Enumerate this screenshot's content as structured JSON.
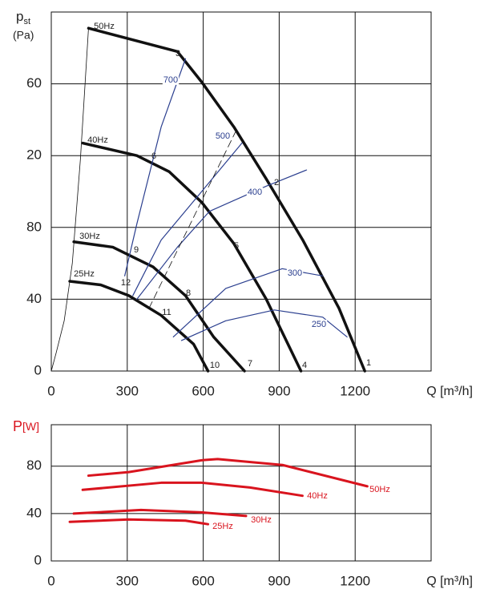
{
  "chart_data": [
    {
      "type": "line",
      "y_label": "p",
      "y_label_sub": "st",
      "y_unit": "(Pa)",
      "x_label": "Q [m³/h]",
      "xlim": [
        0,
        1500
      ],
      "xticks": [
        0,
        300,
        600,
        900,
        1200
      ],
      "ylim": [
        0,
        200
      ],
      "yticks": [
        0,
        40,
        80,
        {
          "value": 120,
          "label": "20"
        },
        {
          "value": 160,
          "label": "60"
        }
      ],
      "grid": true,
      "series": [
        {
          "name": "50Hz",
          "color": "#111111",
          "x": [
            147,
            498,
            594,
            721,
            849,
            993,
            1136,
            1238
          ],
          "values": [
            191,
            178,
            161,
            136,
            107,
            73,
            35,
            0
          ]
        },
        {
          "name": "40Hz",
          "color": "#111111",
          "x": [
            124,
            338,
            466,
            594,
            721,
            849,
            986
          ],
          "values": [
            127,
            120,
            111,
            94,
            71,
            40,
            0
          ]
        },
        {
          "name": "30Hz",
          "color": "#111111",
          "x": [
            89,
            243,
            402,
            530,
            641,
            763
          ],
          "values": [
            72,
            69,
            58,
            42,
            19,
            0
          ]
        },
        {
          "name": "25Hz",
          "color": "#111111",
          "x": [
            73,
            195,
            306,
            434,
            562,
            619
          ],
          "values": [
            50,
            48,
            42,
            31,
            15,
            0
          ]
        },
        {
          "name": "700",
          "color": "#2b3f8f",
          "x": [
            290,
            338,
            434,
            530
          ],
          "values": [
            53,
            82,
            136,
            174
          ]
        },
        {
          "name": "500",
          "color": "#2b3f8f",
          "x": [
            322,
            434,
            594,
            753
          ],
          "values": [
            42,
            73,
            100,
            127
          ]
        },
        {
          "name": "400",
          "color": "#2b3f8f",
          "x": [
            338,
            498,
            625,
            849,
            1008
          ],
          "values": [
            40,
            69,
            89,
            103,
            112
          ]
        },
        {
          "name": "300",
          "color": "#2b3f8f",
          "x": [
            482,
            689,
            912,
            1072
          ],
          "values": [
            19,
            46,
            57,
            53
          ]
        },
        {
          "name": "250",
          "color": "#2b3f8f",
          "x": [
            514,
            689,
            881,
            1072,
            1168
          ],
          "values": [
            17,
            28,
            34,
            30,
            19
          ]
        },
        {
          "color": "#111111",
          "x": [
            0,
            19,
            51,
            83,
            115,
            147
          ],
          "values": [
            0,
            10,
            28,
            60,
            118,
            191
          ]
        },
        {
          "color": "#111111",
          "dashed": true,
          "x": [
            386,
            737
          ],
          "values": [
            35,
            136
          ]
        }
      ],
      "annotations": [
        "1",
        "2",
        "3",
        "4",
        "5",
        "6",
        "7",
        "8",
        "9",
        "10",
        "11",
        "12"
      ]
    },
    {
      "type": "line",
      "y_label": "P",
      "y_unit": "[W]",
      "x_label": "Q [m³/h]",
      "xlim": [
        0,
        1500
      ],
      "xticks": [
        0,
        300,
        600,
        900,
        1200
      ],
      "ylim": [
        0,
        115
      ],
      "yticks": [
        0,
        40,
        80
      ],
      "grid": true,
      "series": [
        {
          "name": "50Hz",
          "color": "#d9141e",
          "x": [
            147,
            306,
            594,
            657,
            913,
            1248
          ],
          "values": [
            72,
            75,
            85,
            86,
            81,
            63
          ]
        },
        {
          "name": "40Hz",
          "color": "#d9141e",
          "x": [
            124,
            434,
            594,
            785,
            992
          ],
          "values": [
            60,
            66,
            66,
            62,
            55
          ]
        },
        {
          "name": "30Hz",
          "color": "#d9141e",
          "x": [
            89,
            354,
            594,
            769
          ],
          "values": [
            40,
            43,
            41,
            38
          ]
        },
        {
          "name": "25Hz",
          "color": "#d9141e",
          "x": [
            73,
            306,
            530,
            619
          ],
          "values": [
            33,
            35,
            34,
            31
          ]
        }
      ]
    }
  ]
}
